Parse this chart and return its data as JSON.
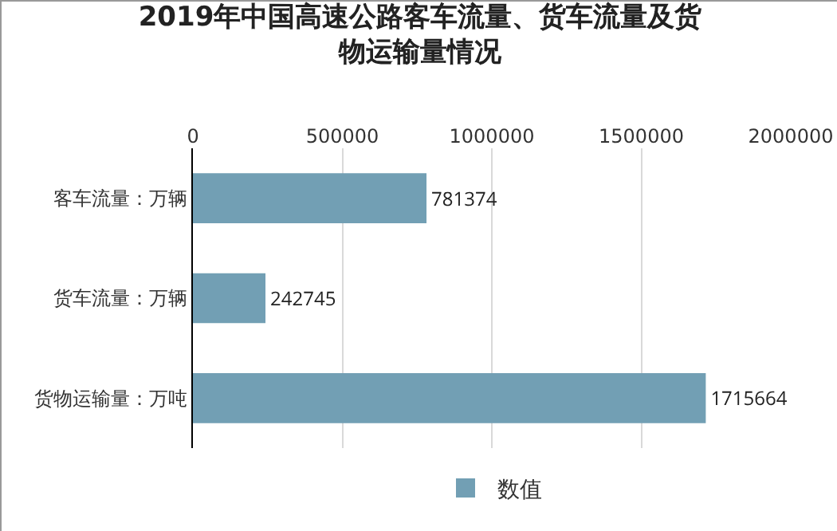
{
  "chart_data": {
    "type": "bar",
    "orientation": "horizontal",
    "title": "2019年中国高速公路客车流量、货车流量及货物运输量情况",
    "categories": [
      "客车流量：万辆",
      "货车流量：万辆",
      "货物运输量：万吨"
    ],
    "series": [
      {
        "name": "数值",
        "color": "#729fb4",
        "values": [
          781374,
          242745,
          1715664
        ]
      }
    ],
    "xlim": [
      0,
      2000000
    ],
    "xticks": [
      0,
      500000,
      1000000,
      1500000,
      2000000
    ],
    "grid": "x",
    "legend": "bottom",
    "data_labels": true
  }
}
